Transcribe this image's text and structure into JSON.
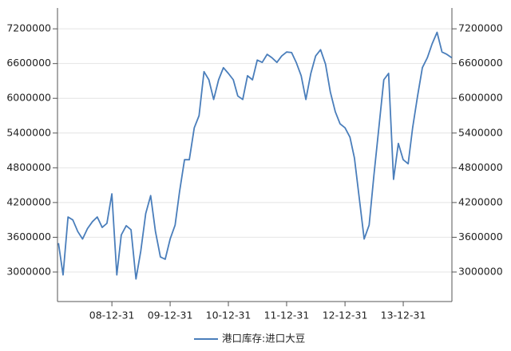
{
  "chart_data": {
    "type": "line",
    "x": [
      "08-01-31",
      "08-02-29",
      "08-03-31",
      "08-04-30",
      "08-05-31",
      "08-06-30",
      "08-07-31",
      "08-08-31",
      "08-09-30",
      "08-10-31",
      "08-11-30",
      "08-12-31",
      "09-01-31",
      "09-02-28",
      "09-03-31",
      "09-04-30",
      "09-05-31",
      "09-06-30",
      "09-07-31",
      "09-08-31",
      "09-09-30",
      "09-10-31",
      "09-11-30",
      "09-12-31",
      "10-01-31",
      "10-02-28",
      "10-03-31",
      "10-04-30",
      "10-05-31",
      "10-06-30",
      "10-07-31",
      "10-08-31",
      "10-09-30",
      "10-10-31",
      "10-11-30",
      "10-12-31",
      "11-01-31",
      "11-02-28",
      "11-03-31",
      "11-04-30",
      "11-05-31",
      "11-06-30",
      "11-07-31",
      "11-08-31",
      "11-09-30",
      "11-10-31",
      "11-11-30",
      "11-12-31",
      "12-01-31",
      "12-02-29",
      "12-03-31",
      "12-04-30",
      "12-05-31",
      "12-06-30",
      "12-07-31",
      "12-08-31",
      "12-09-30",
      "12-10-31",
      "12-11-30",
      "12-12-31",
      "13-01-31",
      "13-02-28",
      "13-03-31",
      "13-04-30",
      "13-05-31",
      "13-06-30",
      "13-07-31",
      "13-08-31",
      "13-09-30",
      "13-10-31",
      "13-11-30",
      "13-12-31",
      "14-01-31",
      "14-02-28",
      "14-03-31",
      "14-04-30",
      "14-05-31",
      "14-06-30",
      "14-07-31",
      "14-08-31",
      "14-09-30",
      "14-10-31"
    ],
    "series": [
      {
        "name": "港口库存:进口大豆",
        "color": "#4a7ebb",
        "values": [
          3500000,
          2950000,
          3950000,
          3900000,
          3700000,
          3570000,
          3750000,
          3870000,
          3950000,
          3770000,
          3840000,
          4350000,
          2950000,
          3640000,
          3800000,
          3730000,
          2880000,
          3360000,
          4010000,
          4320000,
          3700000,
          3260000,
          3220000,
          3570000,
          3810000,
          4390000,
          4940000,
          4940000,
          5490000,
          5700000,
          6460000,
          6320000,
          5980000,
          6320000,
          6530000,
          6430000,
          6320000,
          6040000,
          5980000,
          6390000,
          6320000,
          6660000,
          6620000,
          6760000,
          6700000,
          6620000,
          6730000,
          6800000,
          6790000,
          6620000,
          6390000,
          5980000,
          6430000,
          6730000,
          6840000,
          6590000,
          6110000,
          5770000,
          5560000,
          5490000,
          5330000,
          4970000,
          4260000,
          3570000,
          3810000,
          4670000,
          5490000,
          6320000,
          6430000,
          4600000,
          5220000,
          4940000,
          4870000,
          5490000,
          6040000,
          6530000,
          6700000,
          6940000,
          7140000,
          6800000,
          6760000,
          6700000
        ]
      }
    ],
    "xlim": [
      "08-01-25",
      "14-11-01"
    ],
    "xticks": [
      "08-12-31",
      "09-12-31",
      "10-12-31",
      "11-12-31",
      "12-12-31",
      "13-12-31"
    ],
    "ylim": [
      2490000,
      7560000
    ],
    "yticks": [
      3000000,
      3600000,
      4200000,
      4800000,
      5400000,
      6000000,
      6600000,
      7200000
    ],
    "y2lim": [
      2490000,
      7560000
    ],
    "y2ticks": [
      3000000,
      3600000,
      4200000,
      4800000,
      5400000,
      6000000,
      6600000,
      7200000
    ],
    "grid": true
  }
}
